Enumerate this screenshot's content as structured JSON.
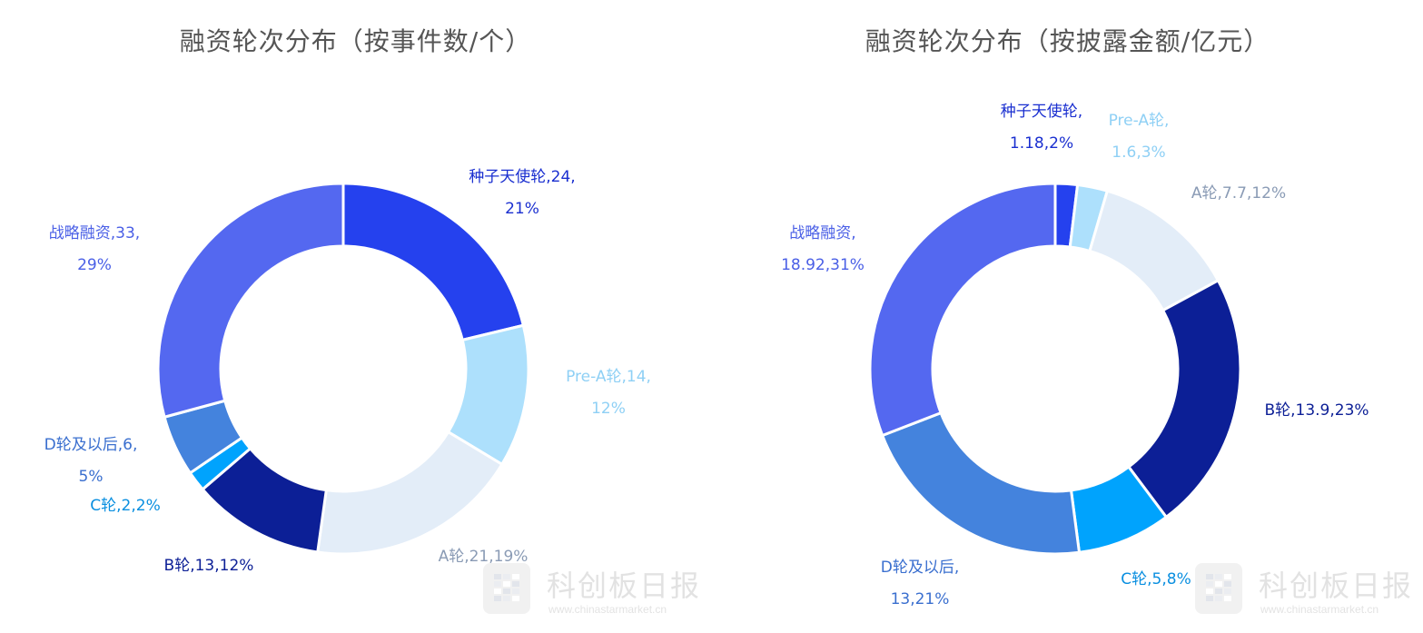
{
  "chart_data": [
    {
      "type": "pie",
      "title": "融资轮次分布（按事件数/个）",
      "series": [
        {
          "label": "种子天使轮",
          "value": 24,
          "pct": "21%",
          "color": "#2541ee",
          "text_color": "#1a2fd0",
          "label_lines": [
            "种子天使轮,24,",
            "21%"
          ]
        },
        {
          "label": "Pre-A轮",
          "value": 14,
          "pct": "12%",
          "color": "#ade0fc",
          "text_color": "#8fd0f5",
          "label_lines": [
            "Pre-A轮,14,",
            "12%"
          ]
        },
        {
          "label": "A轮",
          "value": 21,
          "pct": "19%",
          "color": "#e3edf8",
          "text_color": "#8a9bb5",
          "label_lines": [
            "A轮,21,19%"
          ]
        },
        {
          "label": "B轮",
          "value": 13,
          "pct": "12%",
          "color": "#0c1f96",
          "text_color": "#0c1f96",
          "label_lines": [
            "B轮,13,12%"
          ]
        },
        {
          "label": "C轮",
          "value": 2,
          "pct": "2%",
          "color": "#00a3fd",
          "text_color": "#0a8fe0",
          "label_lines": [
            "C轮,2,2%"
          ]
        },
        {
          "label": "D轮及以后",
          "value": 6,
          "pct": "5%",
          "color": "#4483dd",
          "text_color": "#3a6fcf",
          "label_lines": [
            "D轮及以后,6,",
            "5%"
          ]
        },
        {
          "label": "战略融资",
          "value": 33,
          "pct": "29%",
          "color": "#5468f0",
          "text_color": "#4a5fe6",
          "label_lines": [
            "战略融资,33,",
            "29%"
          ]
        }
      ]
    },
    {
      "type": "pie",
      "title": "融资轮次分布（按披露金额/亿元）",
      "series": [
        {
          "label": "种子天使轮",
          "value": 1.18,
          "pct": "2%",
          "color": "#2541ee",
          "text_color": "#1a2fd0",
          "label_lines": [
            "种子天使轮,",
            "1.18,2%"
          ]
        },
        {
          "label": "Pre-A轮",
          "value": 1.6,
          "pct": "3%",
          "color": "#ade0fc",
          "text_color": "#8fd0f5",
          "label_lines": [
            "Pre-A轮,",
            "1.6,3%"
          ]
        },
        {
          "label": "A轮",
          "value": 7.7,
          "pct": "12%",
          "color": "#e3edf8",
          "text_color": "#8a9bb5",
          "label_lines": [
            "A轮,7.7,12%"
          ]
        },
        {
          "label": "B轮",
          "value": 13.9,
          "pct": "23%",
          "color": "#0c1f96",
          "text_color": "#0c1f96",
          "label_lines": [
            "B轮,13.9,23%"
          ]
        },
        {
          "label": "C轮",
          "value": 5,
          "pct": "8%",
          "color": "#00a3fd",
          "text_color": "#0a8fe0",
          "label_lines": [
            "C轮,5,8%"
          ]
        },
        {
          "label": "D轮及以后",
          "value": 13,
          "pct": "21%",
          "color": "#4483dd",
          "text_color": "#3a6fcf",
          "label_lines": [
            "D轮及以后,",
            "13,21%"
          ]
        },
        {
          "label": "战略融资",
          "value": 18.92,
          "pct": "31%",
          "color": "#5468f0",
          "text_color": "#4a5fe6",
          "label_lines": [
            "战略融资,",
            "18.92,31%"
          ]
        }
      ]
    }
  ],
  "watermark": {
    "title": "科创板日报",
    "url": "www.chinastarmarket.cn"
  }
}
